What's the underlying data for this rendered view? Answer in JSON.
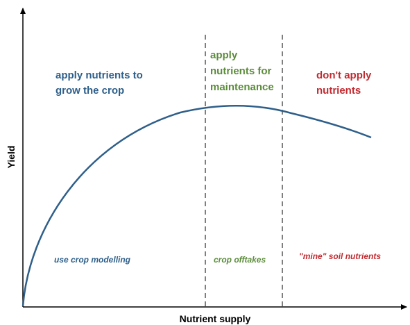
{
  "axes": {
    "x_label": "Nutrient supply",
    "y_label": "Yield"
  },
  "zones": [
    {
      "label_lines": [
        "apply nutrients to",
        "grow the crop"
      ],
      "note": "use crop modelling"
    },
    {
      "label_lines": [
        "apply",
        "nutrients for",
        "maintenance"
      ],
      "note": "crop offtakes"
    },
    {
      "label_lines": [
        "don't apply",
        "nutrients"
      ],
      "note": "\"mine\" soil nutrients"
    }
  ]
}
